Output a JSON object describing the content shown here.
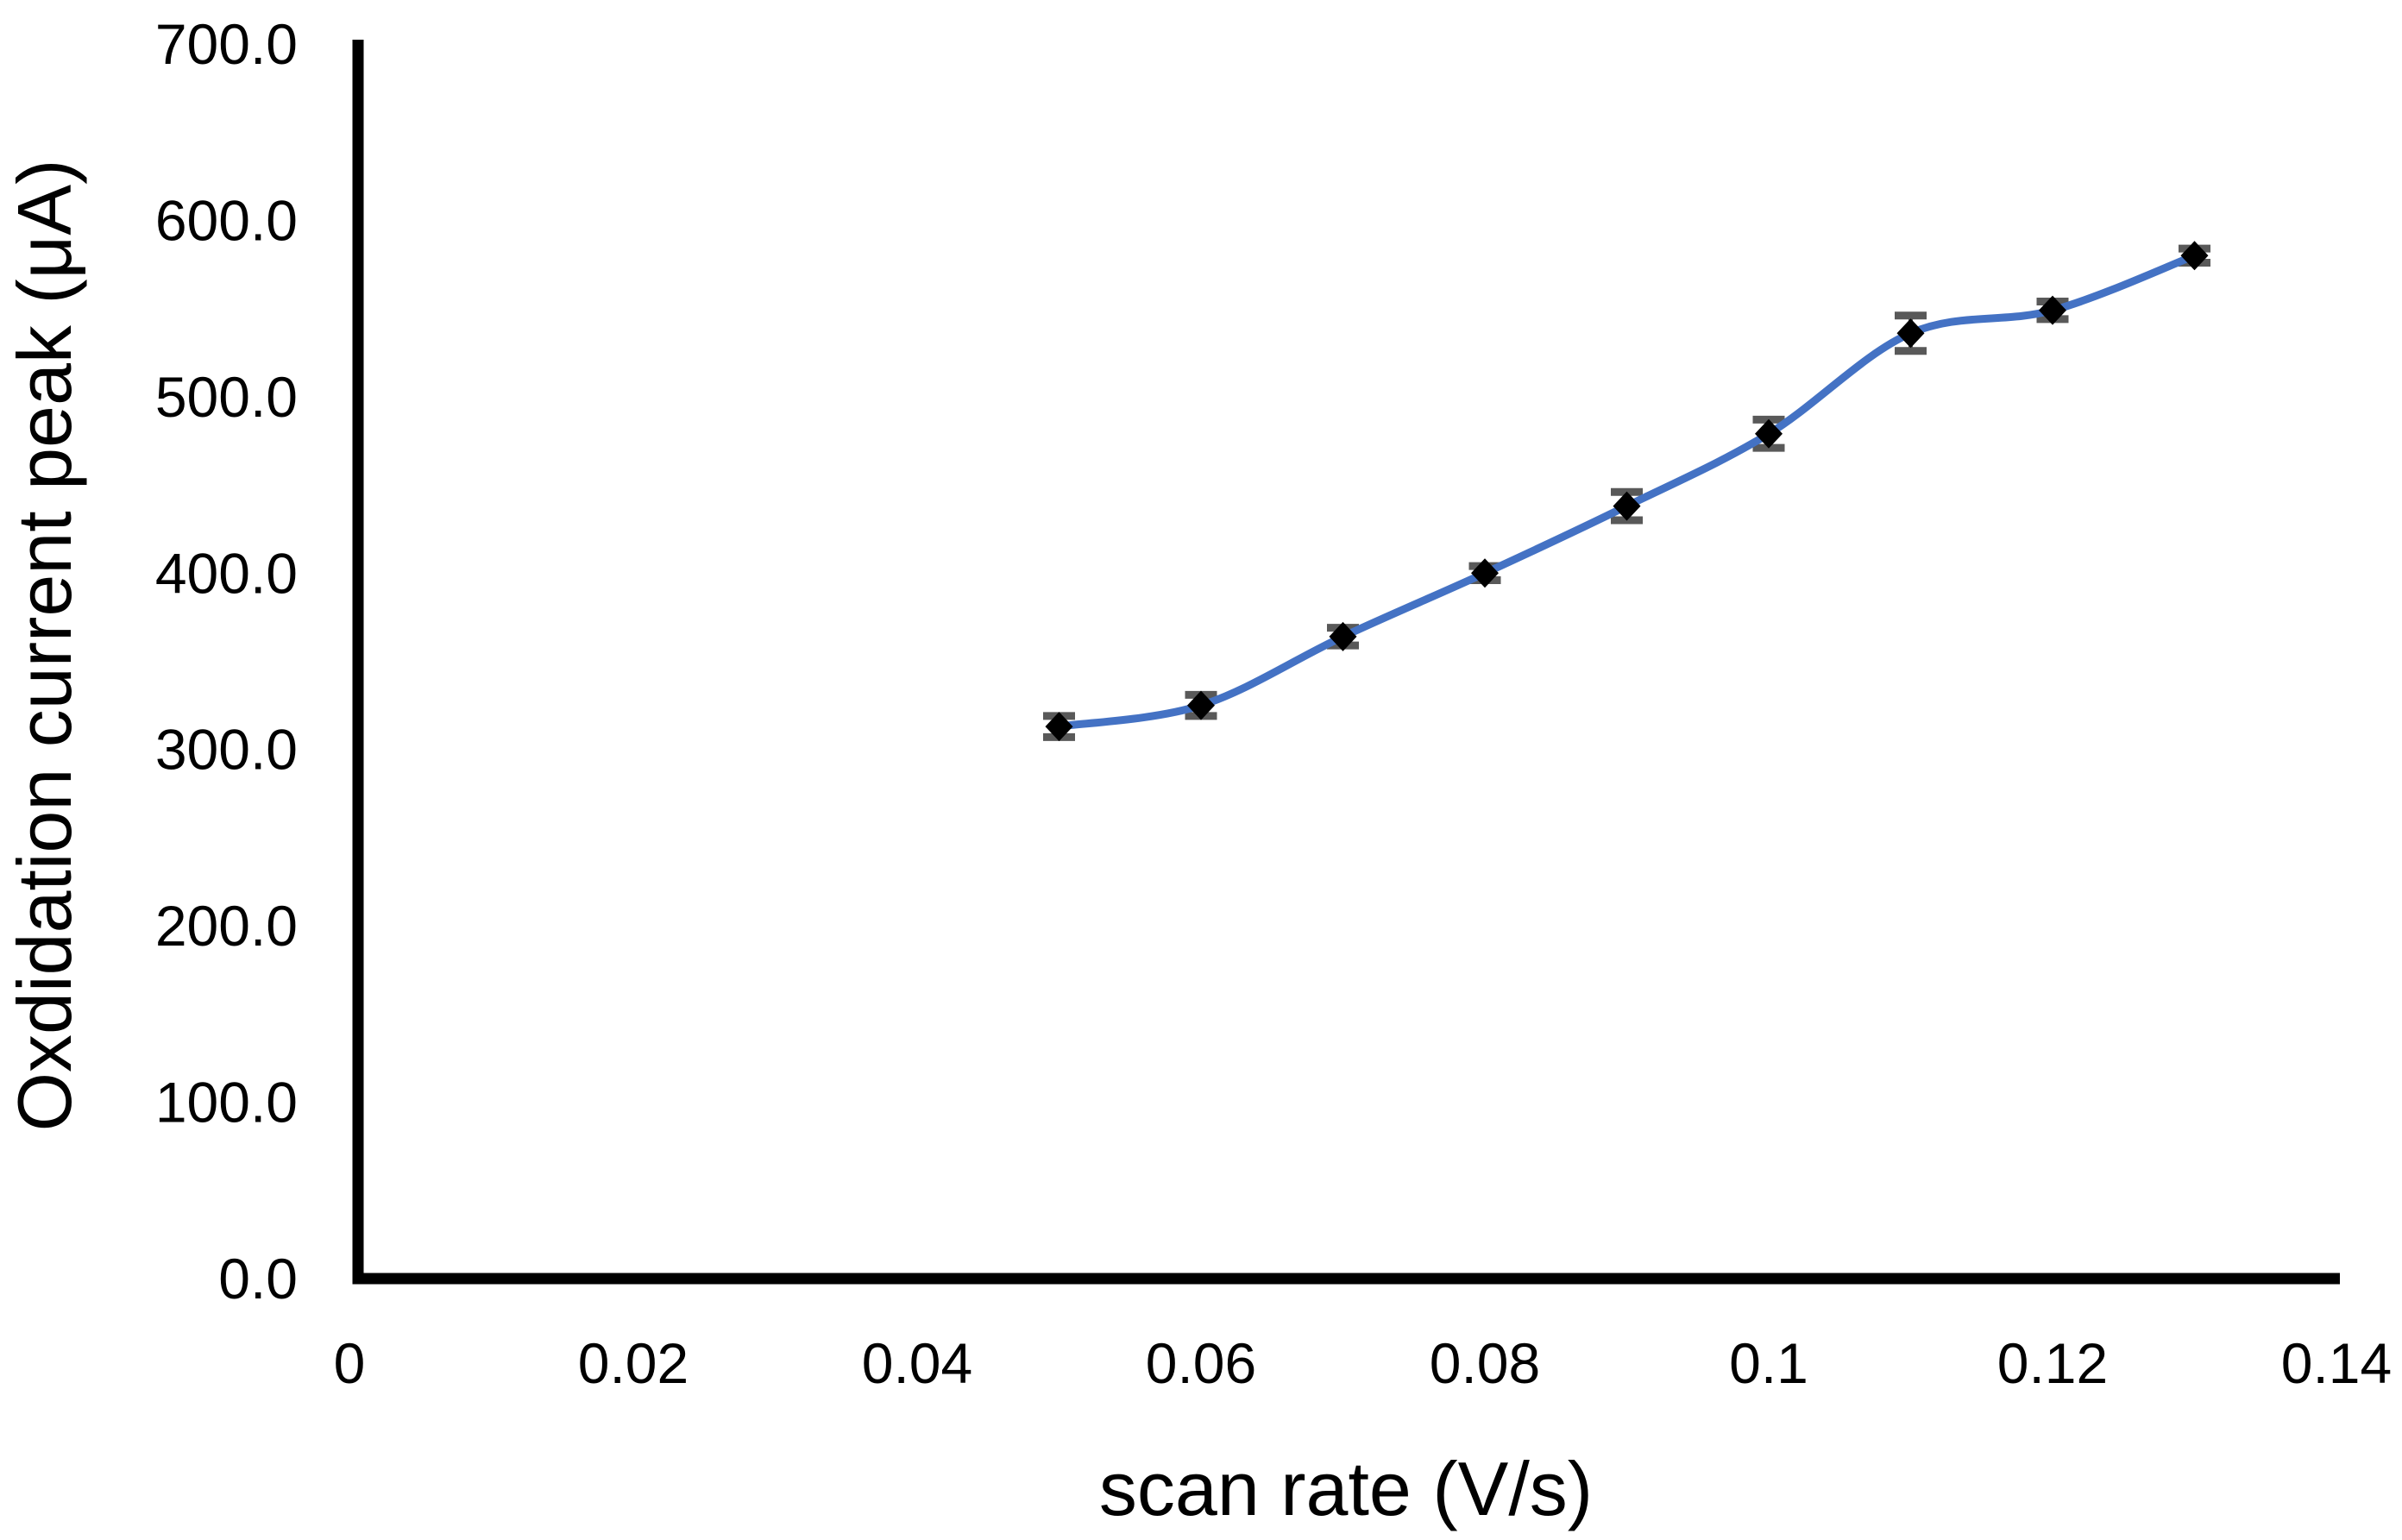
{
  "chart_data": {
    "type": "line",
    "subtype": "scatter-smooth-line-with-error-bars",
    "title": "",
    "xlabel": "scan rate (V/s)",
    "ylabel": "Oxdidation current peak (μA)",
    "x": [
      0.05,
      0.06,
      0.07,
      0.08,
      0.09,
      0.1,
      0.11,
      0.12,
      0.13
    ],
    "y": [
      313,
      325,
      364,
      400,
      438,
      479,
      536,
      549,
      580
    ],
    "y_error": [
      6,
      6,
      5,
      4,
      8,
      8,
      10,
      5,
      4
    ],
    "series": [
      {
        "name": "Oxidation current peak",
        "values": [
          313,
          325,
          364,
          400,
          438,
          479,
          536,
          549,
          580
        ]
      }
    ],
    "x_ticks": [
      "0",
      "0.02",
      "0.04",
      "0.06",
      "0.08",
      "0.1",
      "0.12",
      "0.14"
    ],
    "x_tick_values": [
      0,
      0.02,
      0.04,
      0.06,
      0.08,
      0.1,
      0.12,
      0.14
    ],
    "y_ticks": [
      "0.0",
      "100.0",
      "200.0",
      "300.0",
      "400.0",
      "500.0",
      "600.0",
      "700.0"
    ],
    "y_tick_values": [
      0,
      100,
      200,
      300,
      400,
      500,
      600,
      700
    ],
    "xlim": [
      0,
      0.14
    ],
    "ylim": [
      0,
      700
    ],
    "grid": false,
    "legend": null,
    "marker": "diamond",
    "smooth": true,
    "colors": {
      "line": "#4472C4",
      "marker": "#000000",
      "error_bar": "#595959",
      "axis": "#000000",
      "text": "#000000",
      "background": "#FFFFFF"
    }
  }
}
